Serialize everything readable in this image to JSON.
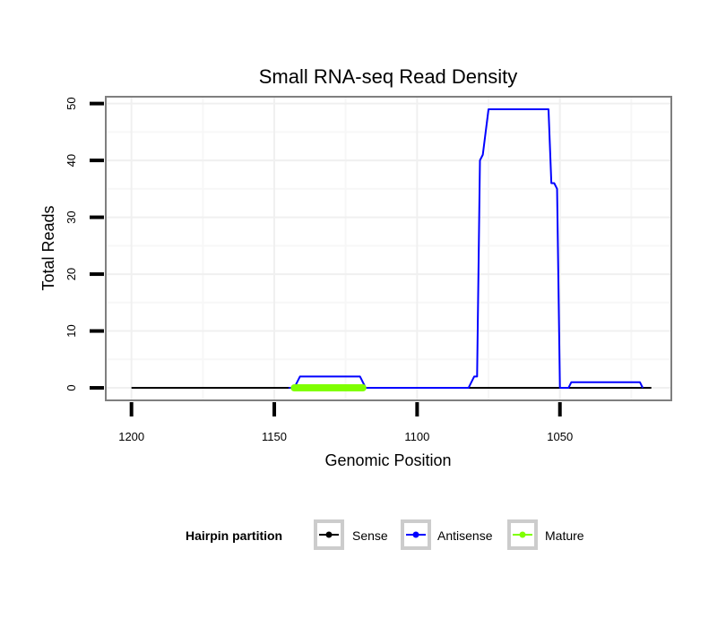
{
  "chart_data": {
    "type": "line",
    "title": "Small RNA-seq Read Density",
    "xlabel": "Genomic Position",
    "ylabel": "Total Reads",
    "xlim": [
      1209,
      1011
    ],
    "ylim": [
      -2.2,
      51.2
    ],
    "x_reversed": true,
    "x_ticks": [
      1200,
      1150,
      1100,
      1050
    ],
    "y_ticks": [
      0,
      10,
      20,
      30,
      40,
      50
    ],
    "grid": true,
    "legend": {
      "title": "Hairpin partition",
      "position": "bottom",
      "items": [
        {
          "name": "Sense",
          "color": "#000000"
        },
        {
          "name": "Antisense",
          "color": "#0000ff"
        },
        {
          "name": "Mature",
          "color": "#7fff00"
        }
      ]
    },
    "series": [
      {
        "name": "Sense",
        "color": "#000000",
        "points": [
          [
            1200,
            0
          ],
          [
            1018,
            0
          ]
        ]
      },
      {
        "name": "Antisense",
        "color": "#0000ff",
        "points": [
          [
            1145,
            0
          ],
          [
            1143,
            0
          ],
          [
            1141,
            2
          ],
          [
            1120,
            2
          ],
          [
            1118,
            0
          ],
          [
            1082,
            0
          ],
          [
            1080,
            2
          ],
          [
            1079,
            2
          ],
          [
            1078,
            40
          ],
          [
            1077,
            41
          ],
          [
            1075,
            49
          ],
          [
            1054,
            49
          ],
          [
            1053,
            36
          ],
          [
            1052,
            36
          ],
          [
            1051,
            35
          ],
          [
            1050,
            0
          ],
          [
            1047,
            0
          ],
          [
            1046,
            1
          ],
          [
            1022,
            1
          ],
          [
            1021,
            0
          ]
        ]
      },
      {
        "name": "Mature",
        "color": "#7fff00",
        "points": [
          [
            1143,
            0
          ],
          [
            1119,
            0
          ]
        ]
      }
    ]
  }
}
